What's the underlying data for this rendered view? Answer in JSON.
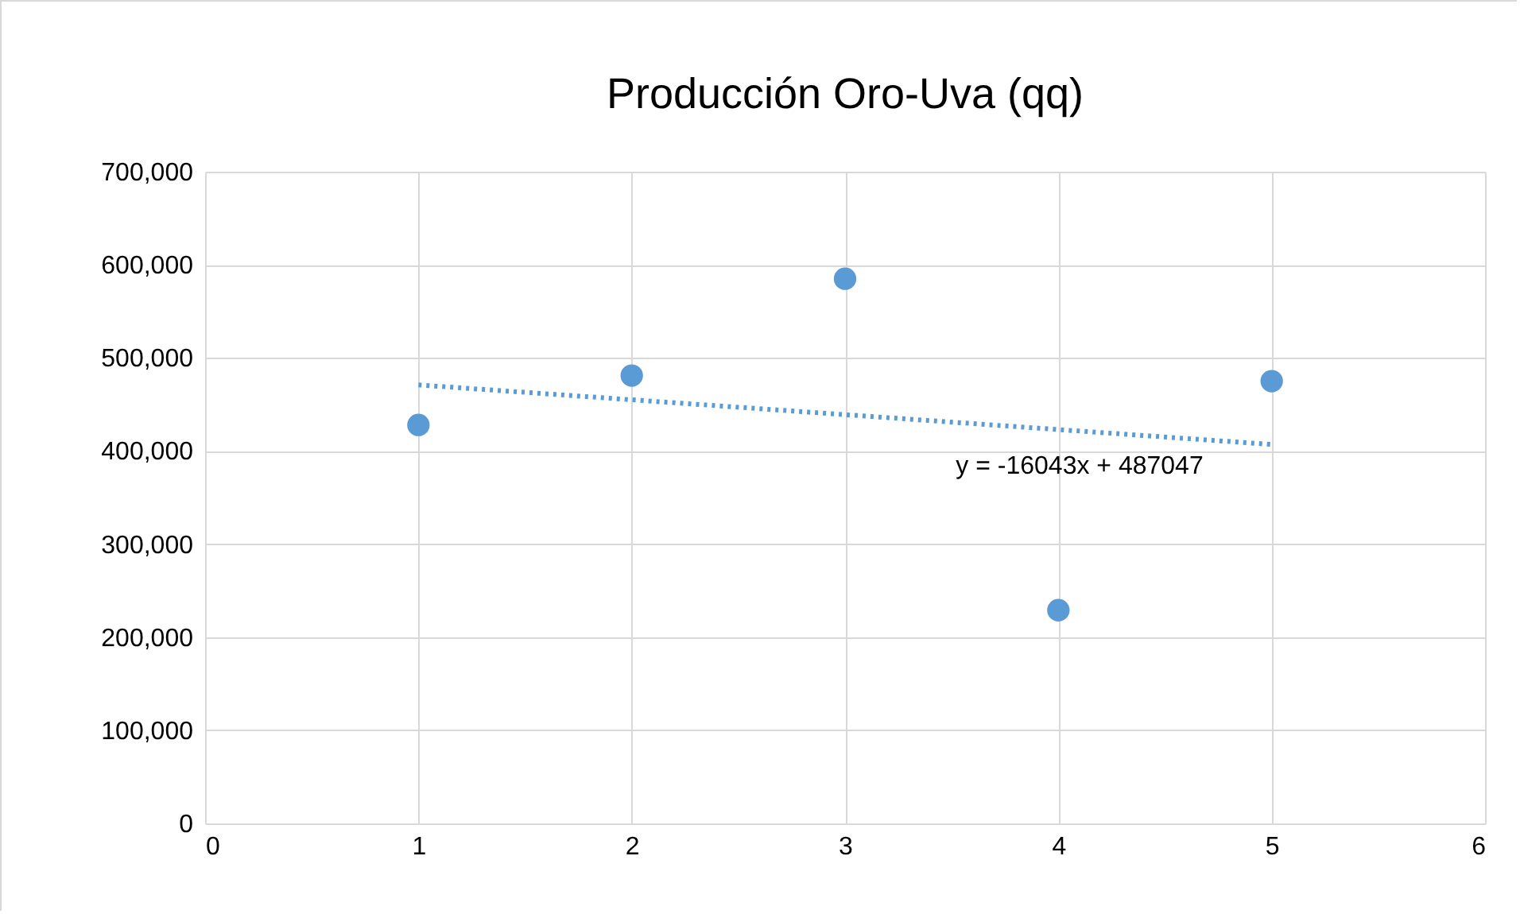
{
  "chart_data": {
    "type": "scatter",
    "title": "Producción Oro-Uva (qq)",
    "x": [
      1,
      2,
      3,
      4,
      5
    ],
    "series": [
      {
        "color": "#5b9bd5",
        "marker": "circle",
        "values": [
          428000,
          481000,
          585000,
          229000,
          475000
        ]
      },
      {
        "type": "line",
        "color": "#5b9bd5",
        "line_style": "dotted",
        "marker": "none",
        "x": [
          1,
          5
        ],
        "values": [
          471000,
          407000
        ]
      }
    ],
    "xlim": [
      0,
      6
    ],
    "xticks": [
      0,
      1,
      2,
      3,
      4,
      5,
      6
    ],
    "ylim": [
      0,
      700000
    ],
    "yticks": [
      {
        "value": 0,
        "label": "0"
      },
      {
        "value": 100000,
        "label": "100,000"
      },
      {
        "value": 200000,
        "label": "200,000"
      },
      {
        "value": 300000,
        "label": "300,000"
      },
      {
        "value": 400000,
        "label": "400,000"
      },
      {
        "value": 500000,
        "label": "500,000"
      },
      {
        "value": 600000,
        "label": "600,000"
      },
      {
        "value": 700000,
        "label": "700,000"
      }
    ],
    "grid": true,
    "annotations": [
      "y = -16043x + 487047"
    ]
  }
}
